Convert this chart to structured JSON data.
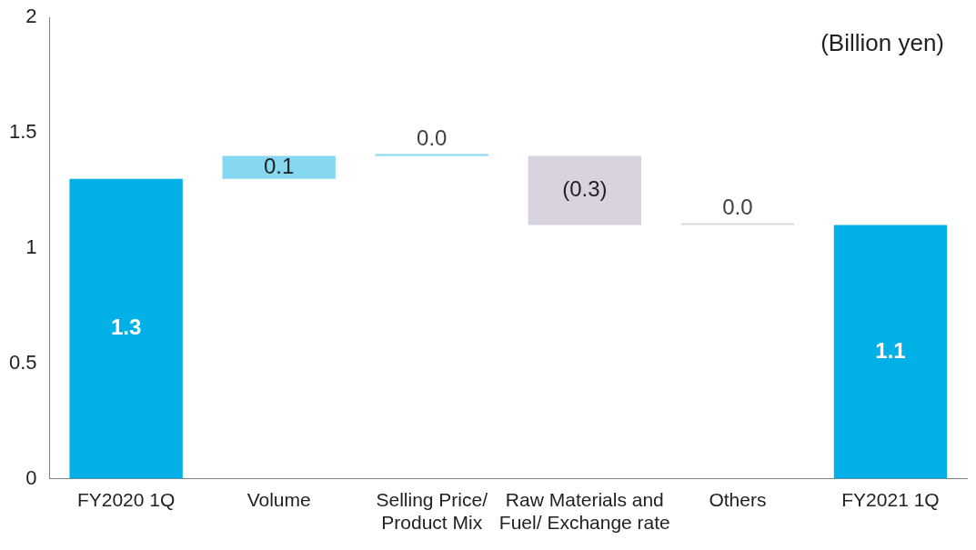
{
  "chart_data": {
    "type": "bar",
    "categories": [
      "FY2020 1Q",
      "Volume",
      "Selling Price/ Product Mix",
      "Raw Materials and Fuel/ Exchange rate",
      "Others",
      "FY2021 1Q"
    ],
    "values": [
      1.3,
      0.1,
      0.0,
      -0.3,
      0.0,
      1.1
    ],
    "base": [
      0,
      1.3,
      1.4,
      1.4,
      1.1,
      0
    ],
    "colors": [
      "#00b0e6",
      "#85d8f0",
      "#85d8f0",
      "#d9d3e0",
      "#d9d3e0",
      "#00b0e6"
    ],
    "value_labels": [
      "1.3",
      "0.1",
      "0.0",
      "(0.3)",
      "0.0",
      "1.1"
    ],
    "ylim": [
      0,
      2
    ],
    "yticks": [
      0,
      0.5,
      1,
      1.5,
      2
    ],
    "grid": false,
    "legend": false,
    "annotations": [
      "(Billion yen)"
    ]
  }
}
